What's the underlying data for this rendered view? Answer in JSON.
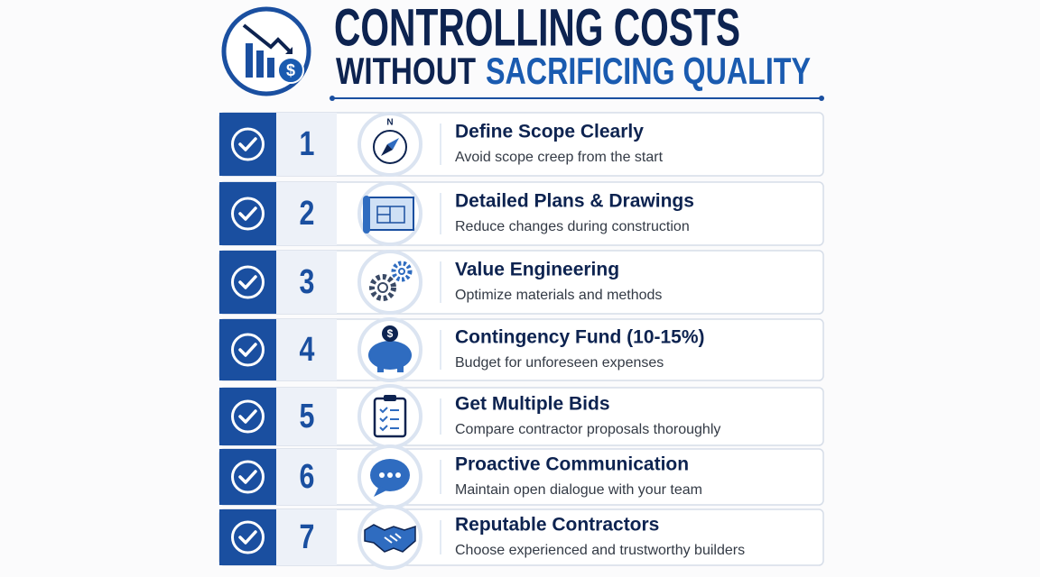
{
  "header": {
    "title_line1": "CONTROLLING COSTS",
    "title_line2_start": "WITHOUT",
    "title_line2_accent": "SACRIFICING QUALITY",
    "logo_symbol": "$"
  },
  "items": [
    {
      "number": 1,
      "title": "Define Scope Clearly",
      "description": "Avoid scope creep from the start",
      "icon_label": "N"
    },
    {
      "number": 2,
      "title": "Detailed Plans & Drawings",
      "description": "Reduce changes during construction"
    },
    {
      "number": 3,
      "title": "Value Engineering",
      "description": "Optimize materials and methods"
    },
    {
      "number": 4,
      "title": "Contingency Fund (10-15%)",
      "description": "Budget for unforeseen expenses",
      "icon_label": "$"
    },
    {
      "number": 5,
      "title": "Get Multiple Bids",
      "description": "Compare contractor proposals thoroughly"
    },
    {
      "number": 6,
      "title": "Proactive Communication",
      "description": "Maintain open dialogue with your team"
    },
    {
      "number": 7,
      "title": "Reputable Contractors",
      "description": "Choose experienced and trustworthy builders"
    }
  ]
}
